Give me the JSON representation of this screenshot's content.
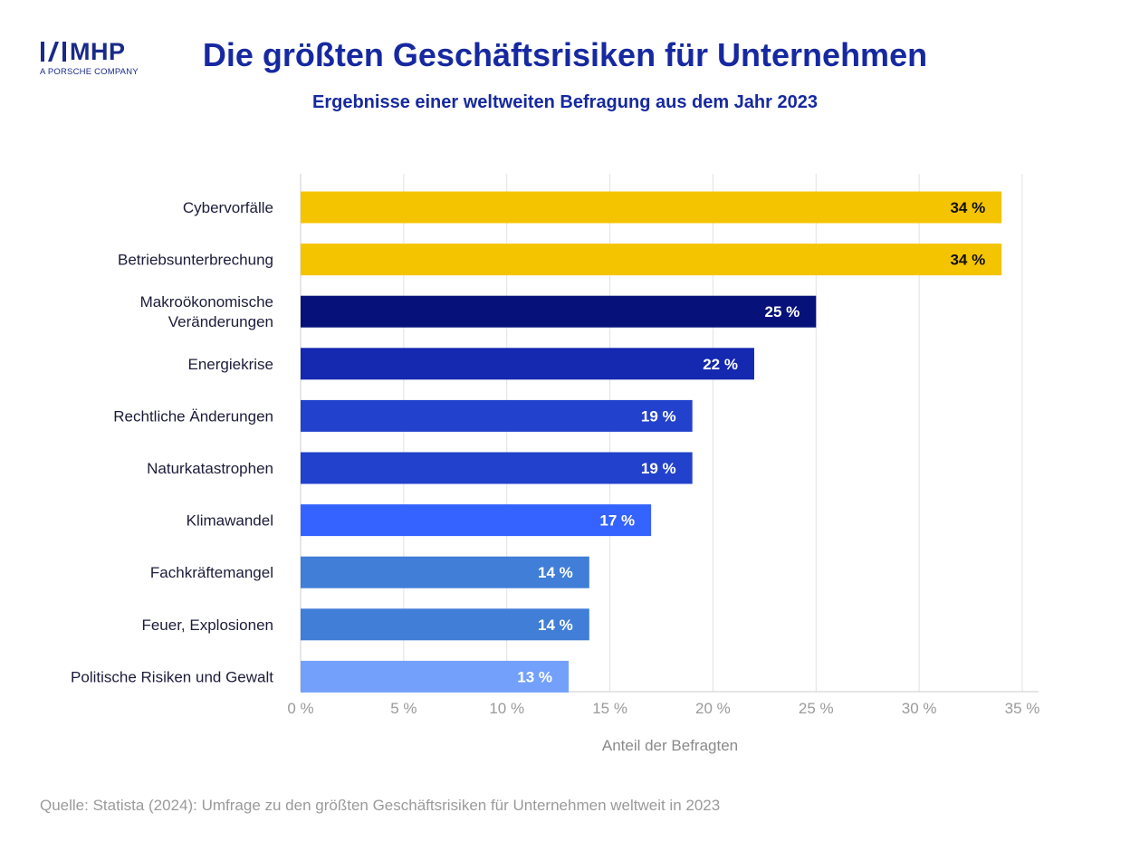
{
  "logo": {
    "text": "MHP",
    "subtext": "A PORSCHE COMPANY",
    "color": "#1a2a8a"
  },
  "header": {
    "title": "Die größten Geschäftsrisiken für Unternehmen",
    "subtitle": "Ergebnisse einer weltweiten Befragung aus dem Jahr 2023"
  },
  "source": "Quelle: Statista (2024): Umfrage zu den größten Geschäftsrisiken für Unternehmen weltweit in 2023",
  "chart_data": {
    "type": "bar",
    "orientation": "horizontal",
    "title": "Die größten Geschäftsrisiken für Unternehmen",
    "subtitle": "Ergebnisse einer weltweiten Befragung aus dem Jahr 2023",
    "xlabel": "Anteil der Befragten",
    "ylabel": "",
    "xlim": [
      0,
      35
    ],
    "ticks": [
      0,
      5,
      10,
      15,
      20,
      25,
      30,
      35
    ],
    "tick_labels": [
      "0 %",
      "5 %",
      "10 %",
      "15 %",
      "20 %",
      "25 %",
      "30 %",
      "35 %"
    ],
    "grid": true,
    "categories": [
      [
        "Cybervorfälle"
      ],
      [
        "Betriebsunterbrechung"
      ],
      [
        "Makroökonomische",
        "Veränderungen"
      ],
      [
        "Energiekrise"
      ],
      [
        "Rechtliche Änderungen"
      ],
      [
        "Naturkatastrophen"
      ],
      [
        "Klimawandel"
      ],
      [
        "Fachkräftemangel"
      ],
      [
        "Feuer, Explosionen"
      ],
      [
        "Politische Risiken und Gewalt"
      ]
    ],
    "values": [
      34,
      34,
      25,
      22,
      19,
      19,
      17,
      14,
      14,
      13
    ],
    "value_labels": [
      "34 %",
      "34 %",
      "25 %",
      "22 %",
      "19 %",
      "19 %",
      "17 %",
      "14 %",
      "14 %",
      "13 %"
    ],
    "colors": [
      "#f5c400",
      "#f5c400",
      "#06127a",
      "#1428b0",
      "#2241cc",
      "#2241cc",
      "#3563ff",
      "#407ed8",
      "#407ed8",
      "#73a0fb"
    ],
    "label_colors": [
      "#111111",
      "#111111",
      "#ffffff",
      "#ffffff",
      "#ffffff",
      "#ffffff",
      "#ffffff",
      "#ffffff",
      "#ffffff",
      "#ffffff"
    ],
    "grid_color": "#e2e2e2",
    "axis_color": "#cccccc"
  }
}
